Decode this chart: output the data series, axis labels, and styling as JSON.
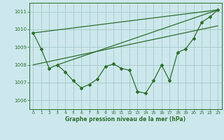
{
  "title": "Graphe pression niveau de la mer (hPa)",
  "bg_color": "#cce8ec",
  "grid_color": "#aacccc",
  "line_color": "#2d6e2d",
  "xlim": [
    -0.5,
    23.5
  ],
  "ylim": [
    1005.5,
    1011.5
  ],
  "yticks": [
    1006,
    1007,
    1008,
    1009,
    1010,
    1011
  ],
  "xticks": [
    0,
    1,
    2,
    3,
    4,
    5,
    6,
    7,
    8,
    9,
    10,
    11,
    12,
    13,
    14,
    15,
    16,
    17,
    18,
    19,
    20,
    21,
    22,
    23
  ],
  "main_x": [
    0,
    1,
    2,
    3,
    4,
    5,
    6,
    7,
    8,
    9,
    10,
    11,
    12,
    13,
    14,
    15,
    16,
    17,
    18,
    19,
    20,
    21,
    22,
    23
  ],
  "main_y": [
    1009.8,
    1008.9,
    1007.8,
    1008.0,
    1007.6,
    1007.1,
    1006.7,
    1006.9,
    1007.2,
    1007.9,
    1008.05,
    1007.8,
    1007.7,
    1006.5,
    1006.4,
    1007.1,
    1008.0,
    1007.1,
    1008.7,
    1008.9,
    1009.5,
    1010.4,
    1010.7,
    1011.1
  ],
  "line1_x": [
    0,
    23
  ],
  "line1_y": [
    1009.8,
    1011.1
  ],
  "line2_x": [
    0,
    23
  ],
  "line2_y": [
    1008.0,
    1010.2
  ],
  "line3_x": [
    3,
    23
  ],
  "line3_y": [
    1008.0,
    1011.1
  ]
}
